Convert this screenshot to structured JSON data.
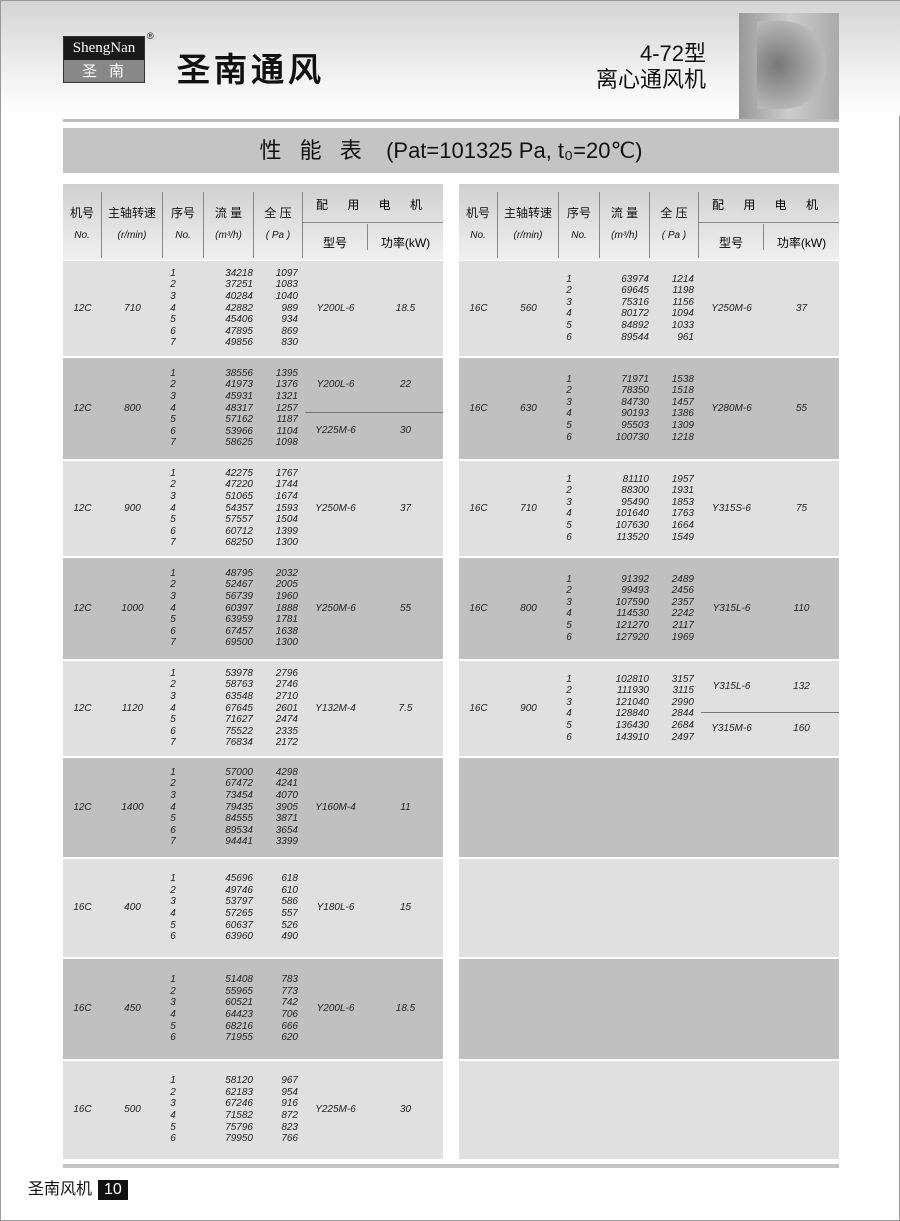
{
  "header": {
    "logo_en": "ShengNan",
    "logo_cn": "圣南",
    "registered": "®",
    "brand": "圣南通风",
    "model": "4-72型",
    "product": "离心通风机"
  },
  "title": {
    "main": "性 能 表",
    "params": "(Pat=101325 Pa, t₀=20℃)"
  },
  "columns": {
    "no": "机号",
    "no_en": "No.",
    "speed": "主轴转速",
    "speed_unit": "(r/min)",
    "seq": "序号",
    "seq_en": "No.",
    "flow": "流 量",
    "flow_unit": "(m³/h)",
    "pressure": "全 压",
    "pressure_unit": "( Pa )",
    "motor": "配 用 电 机",
    "motor_type": "型号",
    "motor_power": "功率(kW)"
  },
  "left_table": [
    {
      "no": "12C",
      "speed": "710",
      "seq": [
        "1",
        "2",
        "3",
        "4",
        "5",
        "6",
        "7"
      ],
      "flow": [
        "34218",
        "37251",
        "40284",
        "42882",
        "45406",
        "47895",
        "49856"
      ],
      "pressure": [
        "1097",
        "1083",
        "1040",
        "989",
        "934",
        "869",
        "830"
      ],
      "motors": [
        {
          "type": "Y200L-6",
          "power": "18.5"
        }
      ]
    },
    {
      "no": "12C",
      "speed": "800",
      "seq": [
        "1",
        "2",
        "3",
        "4",
        "5",
        "6",
        "7"
      ],
      "flow": [
        "38556",
        "41973",
        "45931",
        "48317",
        "57162",
        "53966",
        "58625"
      ],
      "pressure": [
        "1395",
        "1376",
        "1321",
        "1257",
        "1187",
        "1104",
        "1098"
      ],
      "motors": [
        {
          "type": "Y200L-6",
          "power": "22"
        },
        {
          "type": "Y225M-6",
          "power": "30"
        }
      ]
    },
    {
      "no": "12C",
      "speed": "900",
      "seq": [
        "1",
        "2",
        "3",
        "4",
        "5",
        "6",
        "7"
      ],
      "flow": [
        "42275",
        "47220",
        "51065",
        "54357",
        "57557",
        "60712",
        "68250"
      ],
      "pressure": [
        "1767",
        "1744",
        "1674",
        "1593",
        "1504",
        "1399",
        "1300"
      ],
      "motors": [
        {
          "type": "Y250M-6",
          "power": "37"
        }
      ]
    },
    {
      "no": "12C",
      "speed": "1000",
      "seq": [
        "1",
        "2",
        "3",
        "4",
        "5",
        "6",
        "7"
      ],
      "flow": [
        "48795",
        "52467",
        "56739",
        "60397",
        "63959",
        "67457",
        "69500"
      ],
      "pressure": [
        "2032",
        "2005",
        "1960",
        "1888",
        "1781",
        "1638",
        "1300"
      ],
      "motors": [
        {
          "type": "Y250M-6",
          "power": "55"
        }
      ]
    },
    {
      "no": "12C",
      "speed": "1120",
      "seq": [
        "1",
        "2",
        "3",
        "4",
        "5",
        "6",
        "7"
      ],
      "flow": [
        "53978",
        "58763",
        "63548",
        "67645",
        "71627",
        "75522",
        "76834"
      ],
      "pressure": [
        "2796",
        "2746",
        "2710",
        "2601",
        "2474",
        "2335",
        "2172"
      ],
      "motors": [
        {
          "type": "Y132M-4",
          "power": "7.5"
        }
      ]
    },
    {
      "no": "12C",
      "speed": "1400",
      "seq": [
        "1",
        "2",
        "3",
        "4",
        "5",
        "6",
        "7"
      ],
      "flow": [
        "57000",
        "67472",
        "73454",
        "79435",
        "84555",
        "89534",
        "94441"
      ],
      "pressure": [
        "4298",
        "4241",
        "4070",
        "3905",
        "3871",
        "3654",
        "3399"
      ],
      "motors": [
        {
          "type": "Y160M-4",
          "power": "11"
        }
      ]
    },
    {
      "no": "16C",
      "speed": "400",
      "seq": [
        "1",
        "2",
        "3",
        "4",
        "5",
        "6"
      ],
      "flow": [
        "45696",
        "49746",
        "53797",
        "57265",
        "60637",
        "63960"
      ],
      "pressure": [
        "618",
        "610",
        "586",
        "557",
        "526",
        "490"
      ],
      "motors": [
        {
          "type": "Y180L-6",
          "power": "15"
        }
      ]
    },
    {
      "no": "16C",
      "speed": "450",
      "seq": [
        "1",
        "2",
        "3",
        "4",
        "5",
        "6"
      ],
      "flow": [
        "51408",
        "55965",
        "60521",
        "64423",
        "68216",
        "71955"
      ],
      "pressure": [
        "783",
        "773",
        "742",
        "706",
        "666",
        "620"
      ],
      "motors": [
        {
          "type": "Y200L-6",
          "power": "18.5"
        }
      ]
    },
    {
      "no": "16C",
      "speed": "500",
      "seq": [
        "1",
        "2",
        "3",
        "4",
        "5",
        "6"
      ],
      "flow": [
        "58120",
        "62183",
        "67246",
        "71582",
        "75796",
        "79950"
      ],
      "pressure": [
        "967",
        "954",
        "916",
        "872",
        "823",
        "766"
      ],
      "motors": [
        {
          "type": "Y225M-6",
          "power": "30"
        }
      ]
    }
  ],
  "right_table": [
    {
      "no": "16C",
      "speed": "560",
      "seq": [
        "1",
        "2",
        "3",
        "4",
        "5",
        "6"
      ],
      "flow": [
        "63974",
        "69645",
        "75316",
        "80172",
        "84892",
        "89544"
      ],
      "pressure": [
        "1214",
        "1198",
        "1156",
        "1094",
        "1033",
        "961"
      ],
      "motors": [
        {
          "type": "Y250M-6",
          "power": "37"
        }
      ]
    },
    {
      "no": "16C",
      "speed": "630",
      "seq": [
        "1",
        "2",
        "3",
        "4",
        "5",
        "6"
      ],
      "flow": [
        "71971",
        "78350",
        "84730",
        "90193",
        "95503",
        "100730"
      ],
      "pressure": [
        "1538",
        "1518",
        "1457",
        "1386",
        "1309",
        "1218"
      ],
      "motors": [
        {
          "type": "Y280M-6",
          "power": "55"
        }
      ]
    },
    {
      "no": "16C",
      "speed": "710",
      "seq": [
        "1",
        "2",
        "3",
        "4",
        "5",
        "6"
      ],
      "flow": [
        "81110",
        "88300",
        "95490",
        "101640",
        "107630",
        "113520"
      ],
      "pressure": [
        "1957",
        "1931",
        "1853",
        "1763",
        "1664",
        "1549"
      ],
      "motors": [
        {
          "type": "Y315S-6",
          "power": "75"
        }
      ]
    },
    {
      "no": "16C",
      "speed": "800",
      "seq": [
        "1",
        "2",
        "3",
        "4",
        "5",
        "6"
      ],
      "flow": [
        "91392",
        "99493",
        "107590",
        "114530",
        "121270",
        "127920"
      ],
      "pressure": [
        "2489",
        "2456",
        "2357",
        "2242",
        "2117",
        "1969"
      ],
      "motors": [
        {
          "type": "Y315L-6",
          "power": "110"
        }
      ]
    },
    {
      "no": "16C",
      "speed": "900",
      "seq": [
        "1",
        "2",
        "3",
        "4",
        "5",
        "6"
      ],
      "flow": [
        "102810",
        "111930",
        "121040",
        "128840",
        "136430",
        "143910"
      ],
      "pressure": [
        "3157",
        "3115",
        "2990",
        "2844",
        "2684",
        "2497"
      ],
      "motors": [
        {
          "type": "Y315L-6",
          "power": "132"
        },
        {
          "type": "Y315M-6",
          "power": "160"
        }
      ]
    }
  ],
  "footer": {
    "label": "圣南风机",
    "page": "10"
  }
}
